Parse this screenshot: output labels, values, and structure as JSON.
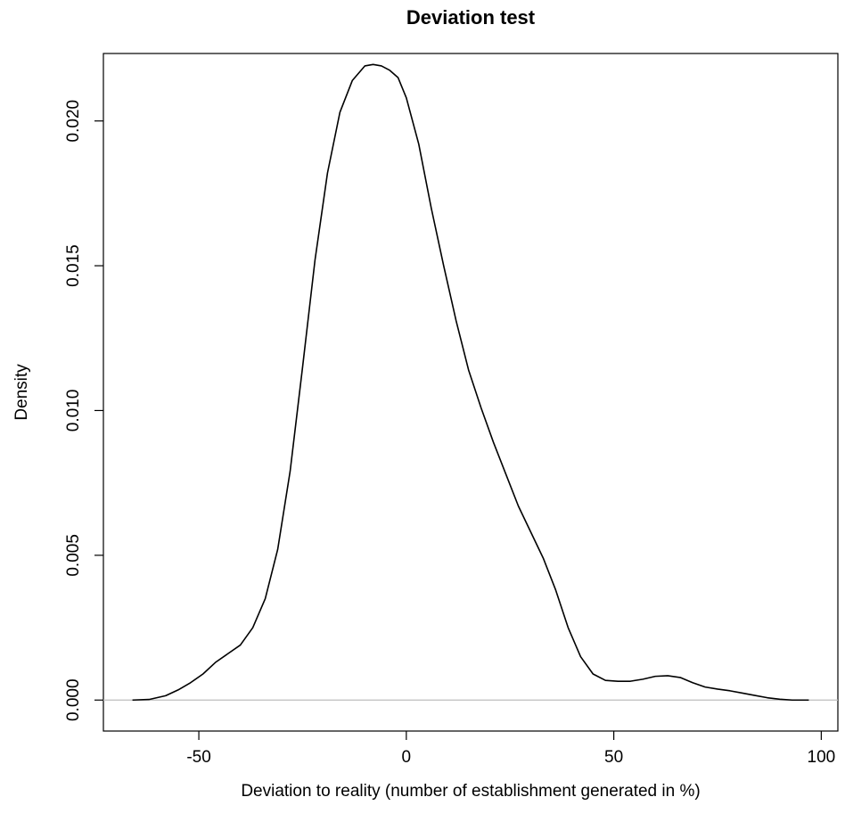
{
  "chart_data": {
    "type": "line",
    "title": "Deviation test",
    "xlabel": "Deviation to reality (number of establishment generated in %)",
    "ylabel": "Density",
    "xlim": [
      -73,
      104
    ],
    "ylim": [
      -0.00107,
      0.02233
    ],
    "x_ticks": [
      -50,
      0,
      50,
      100
    ],
    "x_tick_labels": [
      "-50",
      "0",
      "50",
      "100"
    ],
    "y_ticks": [
      0.0,
      0.005,
      0.01,
      0.015,
      0.02
    ],
    "y_tick_labels": [
      "0.000",
      "0.005",
      "0.010",
      "0.015",
      "0.020"
    ],
    "grid": false,
    "baseline": {
      "y": 0,
      "color": "#bebebe"
    },
    "series": [
      {
        "color": "#000000",
        "x": [
          -66,
          -62,
          -58,
          -55,
          -52,
          -49,
          -46,
          -43,
          -40,
          -37,
          -34,
          -31,
          -28,
          -25,
          -22,
          -19,
          -16,
          -13,
          -10,
          -8,
          -6,
          -4,
          -2,
          0,
          3,
          6,
          9,
          12,
          15,
          18,
          21,
          24,
          27,
          30,
          33,
          36,
          39,
          42,
          45,
          48,
          51,
          54,
          57,
          60,
          63,
          66,
          69,
          72,
          75,
          78,
          81,
          84,
          87,
          90,
          93,
          97
        ],
        "y": [
          0.0,
          2e-05,
          0.00015,
          0.00035,
          0.0006,
          0.0009,
          0.0013,
          0.0016,
          0.0019,
          0.0025,
          0.0035,
          0.0052,
          0.0079,
          0.0115,
          0.0152,
          0.0182,
          0.0203,
          0.0214,
          0.0219,
          0.02195,
          0.0219,
          0.02175,
          0.0215,
          0.0208,
          0.0192,
          0.017,
          0.015,
          0.0131,
          0.0114,
          0.0101,
          0.0089,
          0.0078,
          0.0067,
          0.0058,
          0.0049,
          0.0038,
          0.0025,
          0.0015,
          0.0009,
          0.00068,
          0.00065,
          0.00065,
          0.00072,
          0.00082,
          0.00084,
          0.00078,
          0.0006,
          0.00045,
          0.00038,
          0.00032,
          0.00024,
          0.00016,
          8e-05,
          3e-05,
          0.0,
          0.0
        ]
      }
    ]
  }
}
